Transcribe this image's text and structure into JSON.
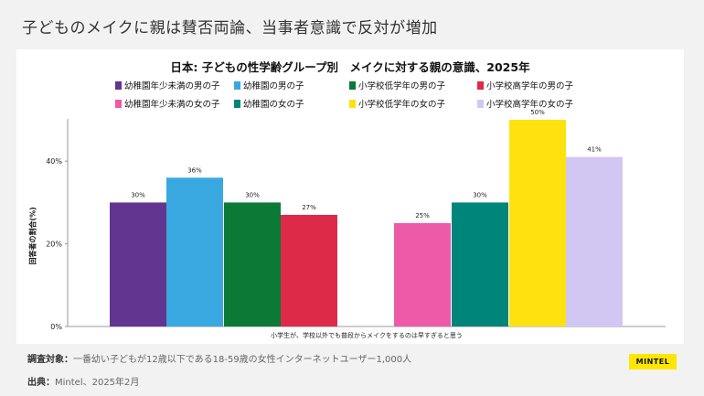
{
  "slide": {
    "title": "子どものメイクに親は賛否両論、当事者意識で反対が増加"
  },
  "footer": {
    "subject_label": "調査対象：",
    "subject_text": "一番幼い子どもが12歳以下である18-59歳の女性インターネットユーザー1,000人",
    "source_label": "出典：",
    "source_text": "Mintel、2025年2月",
    "logo": "MINTEL"
  },
  "chart_data": {
    "type": "bar",
    "title": "日本: 子どもの性学齢グループ別　メイクに対する親の意識、2025年",
    "ylabel": "回答者の割合(%)",
    "xlabel": "小学生が、学校以外でも普段からメイクをするのは早すぎると思う",
    "ylim": [
      0,
      50
    ],
    "yticks": [
      "0%",
      "20%",
      "40%"
    ],
    "yticks_values": [
      0,
      20,
      40
    ],
    "grid": false,
    "legend_position": "top",
    "categories": [
      "幼稚園年少未満の男の子",
      "幼稚園の男の子",
      "小学校低学年の男の子",
      "小学校高学年の男の子",
      "幼稚園年少未満の女の子",
      "幼稚園の女の子",
      "小学校低学年の女の子",
      "小学校高学年の女の子"
    ],
    "legend_order": [
      0,
      1,
      2,
      3,
      4,
      5,
      6,
      7
    ],
    "values": [
      30,
      36,
      30,
      27,
      25,
      30,
      50,
      41
    ],
    "value_labels": [
      "30%",
      "36%",
      "30%",
      "27%",
      "25%",
      "30%",
      "50%",
      "41%"
    ],
    "colors": [
      "#623590",
      "#3aa8e0",
      "#0a7a36",
      "#dc2a48",
      "#ed5aa8",
      "#00857a",
      "#fde20f",
      "#d2c6f2"
    ]
  }
}
